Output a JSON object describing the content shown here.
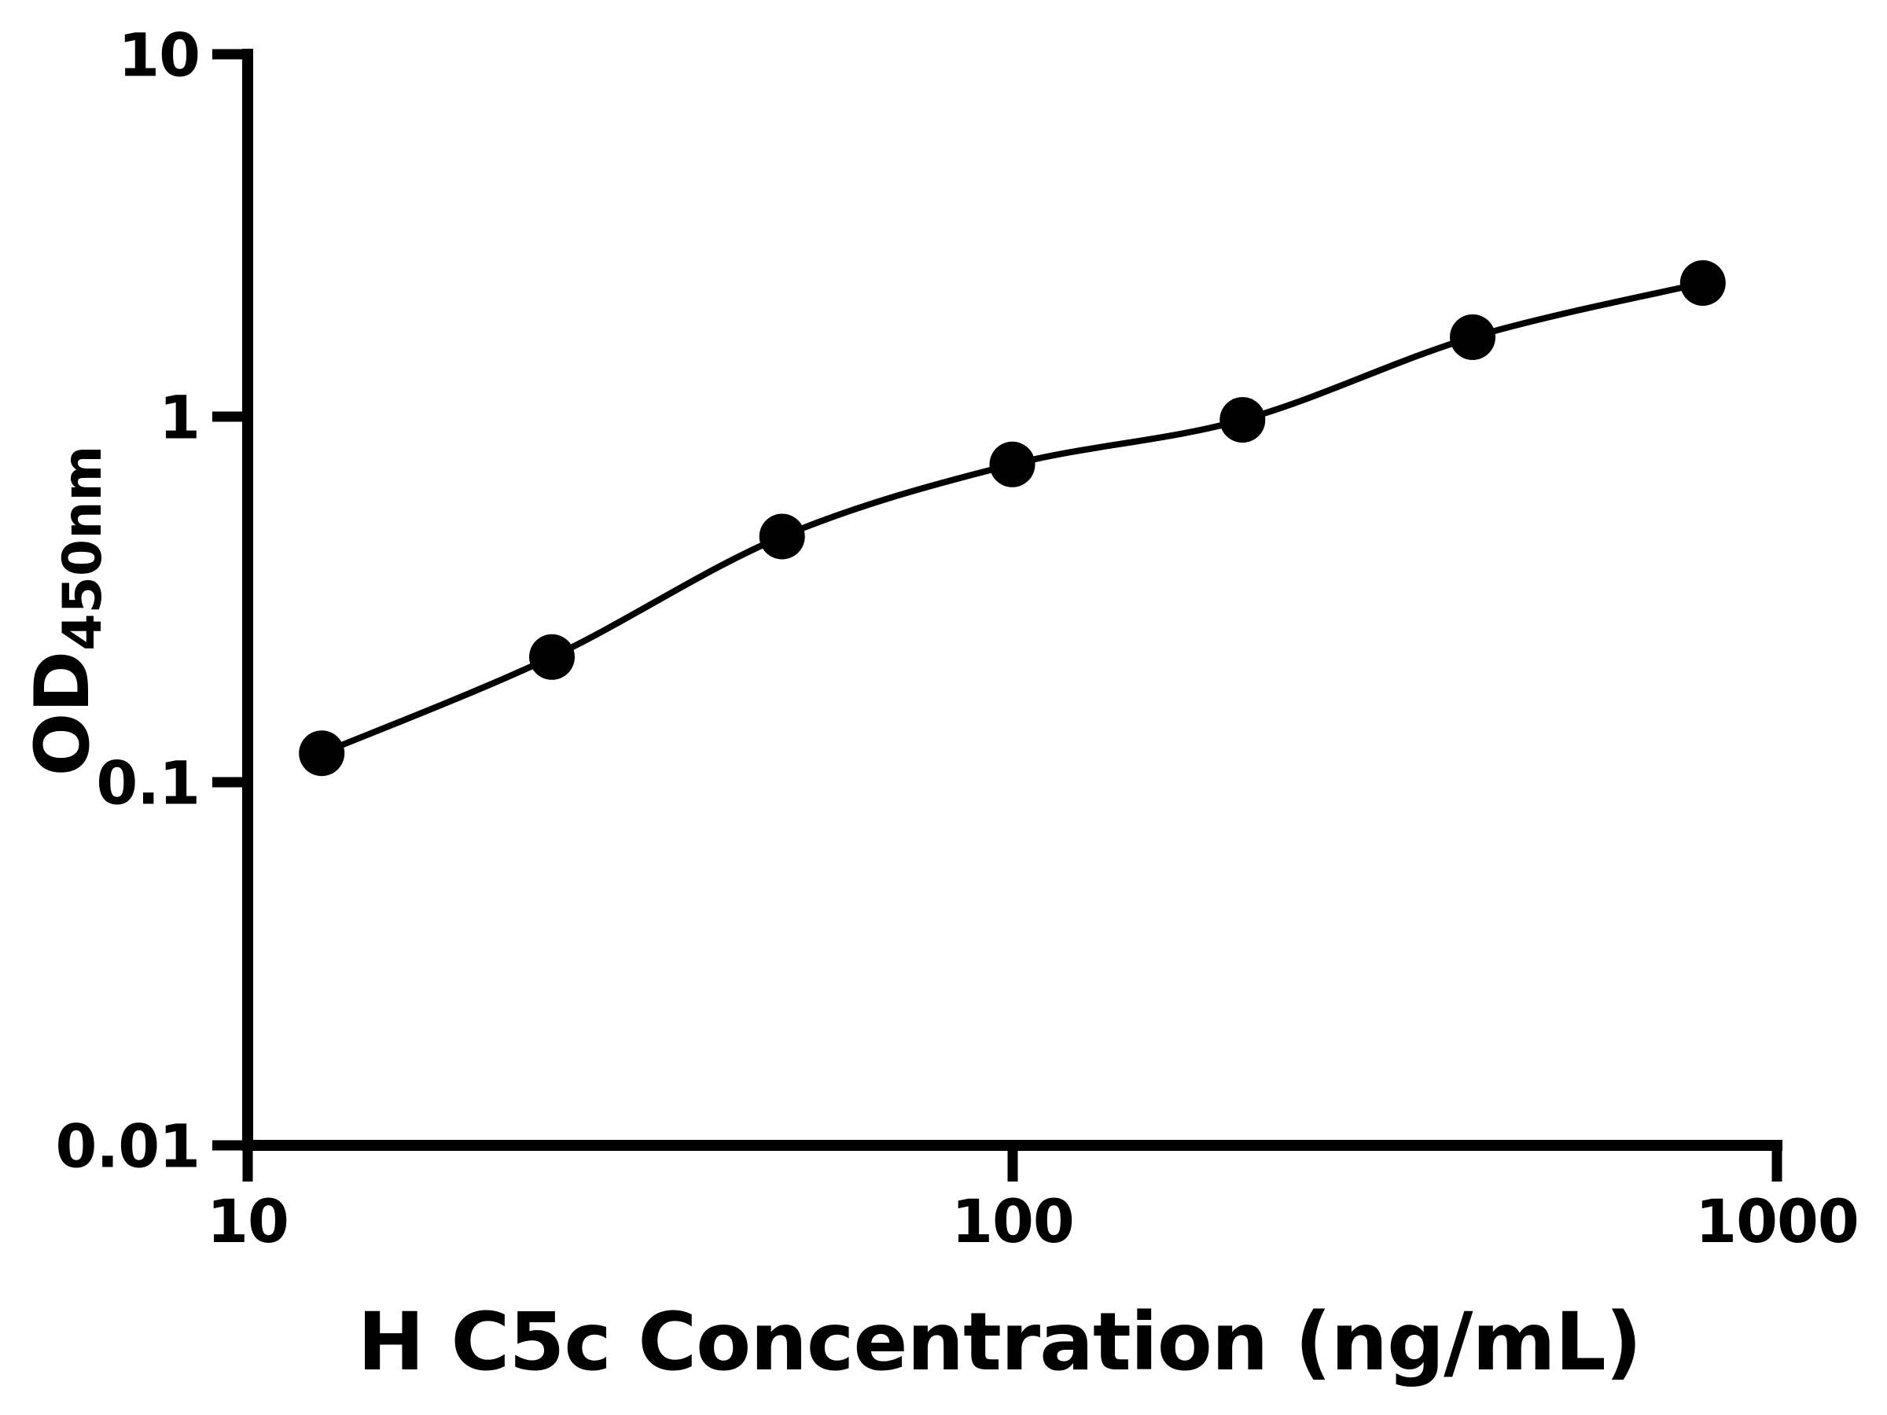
{
  "figure": {
    "background_color": "#ffffff",
    "ink_color": "#000000"
  },
  "chart_data": {
    "type": "scatter",
    "xlabel": "H C5c Concentration (ng/mL)",
    "ylabel": "OD450nm",
    "ylabel_main": "OD",
    "ylabel_sub": "450nm",
    "x_scale": "log10",
    "y_scale": "log10",
    "xlim": [
      10,
      1000
    ],
    "ylim": [
      0.01,
      10
    ],
    "grid": false,
    "legend": false,
    "x": [
      12.5,
      25,
      50,
      100,
      200,
      400,
      800
    ],
    "y": [
      0.12,
      0.22,
      0.47,
      0.74,
      0.98,
      1.65,
      2.32
    ],
    "x_ticks": [
      10,
      100,
      1000
    ],
    "y_ticks": [
      10,
      1,
      0.1,
      0.01
    ],
    "x_tick_labels": [
      "10",
      "100",
      "1000"
    ],
    "y_tick_labels": [
      "10",
      "1",
      "0.1",
      "0.01"
    ],
    "marker": "filled-circle",
    "marker_color": "#000000",
    "line_color": "#000000",
    "axis_color": "#000000"
  }
}
